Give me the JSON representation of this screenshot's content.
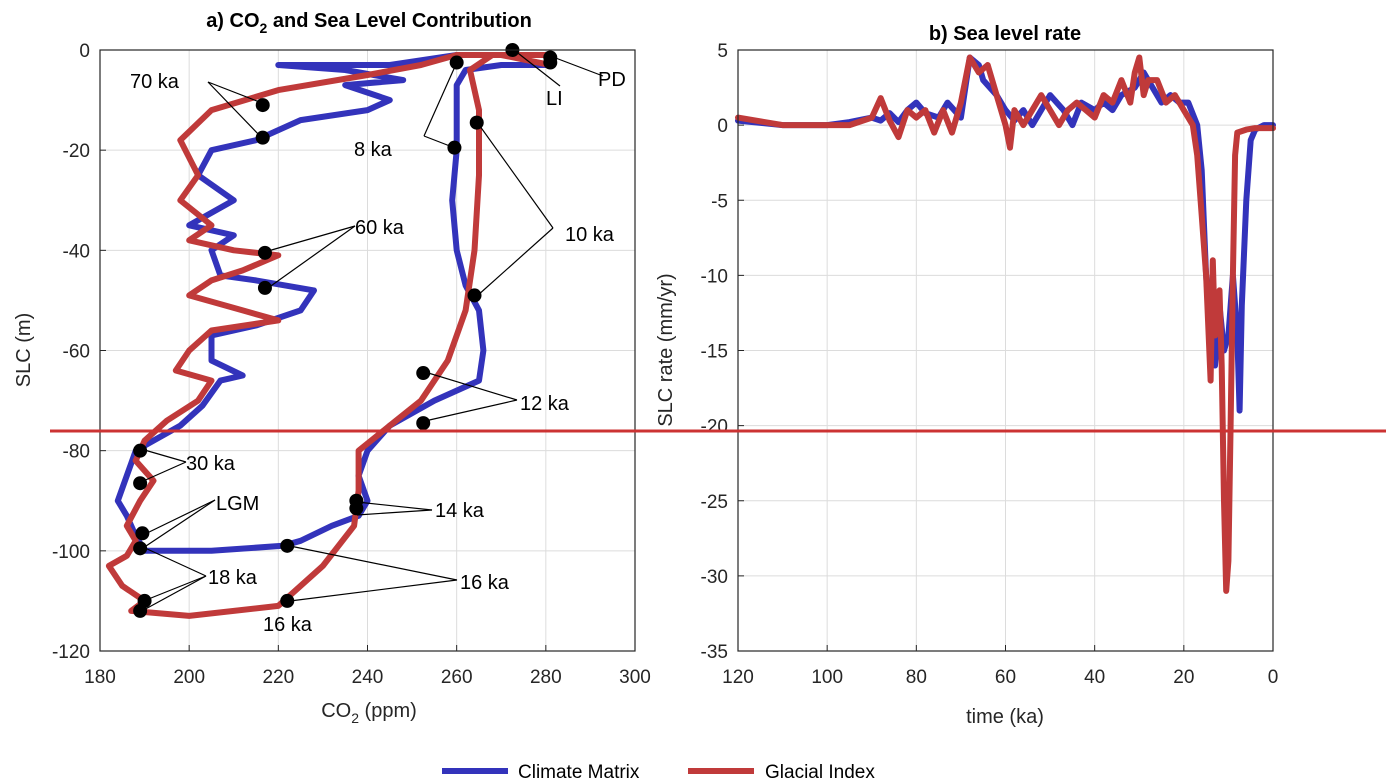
{
  "chart_data": [
    {
      "type": "line",
      "panel": "a",
      "title": "a) CO₂ and Sea Level Contribution",
      "xlabel": "CO₂ (ppm)",
      "ylabel": "SLC (m)",
      "xlim": [
        180,
        300
      ],
      "ylim": [
        -120,
        0
      ],
      "xticks": [
        180,
        200,
        220,
        240,
        260,
        280,
        300
      ],
      "yticks": [
        0,
        -20,
        -40,
        -60,
        -80,
        -100,
        -120
      ],
      "grid": true,
      "series": [
        {
          "name": "Climate Matrix",
          "color": "#3333bb",
          "points": [
            [
              281,
              -3
            ],
            [
              270,
              -3
            ],
            [
              262,
              -4
            ],
            [
              260,
              -7
            ],
            [
              260,
              -20
            ],
            [
              259,
              -30
            ],
            [
              260,
              -40
            ],
            [
              262,
              -47
            ],
            [
              265,
              -52
            ],
            [
              266,
              -60
            ],
            [
              265,
              -66
            ],
            [
              255,
              -70
            ],
            [
              245,
              -75
            ],
            [
              240,
              -80
            ],
            [
              238,
              -85
            ],
            [
              240,
              -90
            ],
            [
              238,
              -93
            ],
            [
              232,
              -95
            ],
            [
              225,
              -98
            ],
            [
              221,
              -99
            ],
            [
              205,
              -100
            ],
            [
              190,
              -100
            ],
            [
              188,
              -97
            ],
            [
              186,
              -93
            ],
            [
              184,
              -90
            ],
            [
              186,
              -85
            ],
            [
              188,
              -80
            ],
            [
              192,
              -78
            ],
            [
              198,
              -75
            ],
            [
              203,
              -71
            ],
            [
              207,
              -66
            ],
            [
              212,
              -65
            ],
            [
              205,
              -62
            ],
            [
              205,
              -57
            ],
            [
              215,
              -55
            ],
            [
              225,
              -52
            ],
            [
              228,
              -48
            ],
            [
              215,
              -46
            ],
            [
              207,
              -45
            ],
            [
              205,
              -40
            ],
            [
              210,
              -37
            ],
            [
              200,
              -35
            ],
            [
              210,
              -30
            ],
            [
              202,
              -25
            ],
            [
              205,
              -20
            ],
            [
              215,
              -18
            ],
            [
              225,
              -14
            ],
            [
              240,
              -12
            ],
            [
              245,
              -10
            ],
            [
              235,
              -7
            ],
            [
              248,
              -6
            ],
            [
              235,
              -4
            ],
            [
              220,
              -3
            ],
            [
              245,
              -3
            ],
            [
              260,
              -1
            ],
            [
              281,
              -1
            ]
          ]
        },
        {
          "name": "Glacial Index",
          "color": "#c03a3a",
          "points": [
            [
              281,
              -3
            ],
            [
              270,
              -1
            ],
            [
              260,
              -1
            ],
            [
              252,
              -3
            ],
            [
              240,
              -5
            ],
            [
              220,
              -8
            ],
            [
              205,
              -12
            ],
            [
              198,
              -18
            ],
            [
              202,
              -25
            ],
            [
              198,
              -30
            ],
            [
              205,
              -35
            ],
            [
              200,
              -38
            ],
            [
              210,
              -40
            ],
            [
              220,
              -41
            ],
            [
              212,
              -44
            ],
            [
              205,
              -46
            ],
            [
              200,
              -49
            ],
            [
              212,
              -52
            ],
            [
              220,
              -54
            ],
            [
              205,
              -56
            ],
            [
              200,
              -60
            ],
            [
              197,
              -64
            ],
            [
              205,
              -66
            ],
            [
              202,
              -70
            ],
            [
              195,
              -74
            ],
            [
              190,
              -78
            ],
            [
              188,
              -82
            ],
            [
              192,
              -86
            ],
            [
              189,
              -90
            ],
            [
              186,
              -95
            ],
            [
              188,
              -98
            ],
            [
              186,
              -101
            ],
            [
              182,
              -103
            ],
            [
              185,
              -107
            ],
            [
              190,
              -110
            ],
            [
              187,
              -112
            ],
            [
              200,
              -113
            ],
            [
              220,
              -111
            ],
            [
              230,
              -103
            ],
            [
              237,
              -95
            ],
            [
              238,
              -88
            ],
            [
              238,
              -80
            ],
            [
              245,
              -75
            ],
            [
              252,
              -70
            ],
            [
              258,
              -62
            ],
            [
              262,
              -52
            ],
            [
              264,
              -40
            ],
            [
              265,
              -25
            ],
            [
              265,
              -12
            ],
            [
              263,
              -4
            ],
            [
              268,
              -1
            ],
            [
              281,
              -1
            ]
          ]
        }
      ],
      "markers": {
        "color": "#000000",
        "points": [
          [
            272.5,
            0
          ],
          [
            281,
            -1.5
          ],
          [
            281,
            -2.5
          ],
          [
            260,
            -2.5
          ],
          [
            216.5,
            -11
          ],
          [
            216.5,
            -17.5
          ],
          [
            259.5,
            -19.5
          ],
          [
            264.5,
            -14.5
          ],
          [
            217,
            -40.5
          ],
          [
            217,
            -47.5
          ],
          [
            264,
            -49
          ],
          [
            252.5,
            -64.5
          ],
          [
            252.5,
            -74.5
          ],
          [
            189,
            -80
          ],
          [
            189,
            -86.5
          ],
          [
            237.5,
            -90
          ],
          [
            237.5,
            -91.5
          ],
          [
            189.5,
            -96.5
          ],
          [
            189,
            -99.5
          ],
          [
            222,
            -99
          ],
          [
            190,
            -110
          ],
          [
            222,
            -110
          ],
          [
            189,
            -112
          ]
        ]
      },
      "annotations": {
        "pd": "PD",
        "li": "LI",
        "ka70": "70 ka",
        "ka8": "8 ka",
        "ka10": "10 ka",
        "ka60": "60 ka",
        "ka12": "12 ka",
        "ka30": "30 ka",
        "ka14": "14 ka",
        "lgm": "LGM",
        "ka18": "18 ka",
        "ka16a": "16 ka",
        "ka16b": "16 ka"
      }
    },
    {
      "type": "line",
      "panel": "b",
      "title": "b) Sea level rate",
      "xlabel": "time (ka)",
      "ylabel": "SLC rate (mm/yr)",
      "xlim": [
        120,
        0
      ],
      "ylim": [
        -35,
        5
      ],
      "xticks": [
        120,
        100,
        80,
        60,
        40,
        20,
        0
      ],
      "yticks": [
        5,
        0,
        -5,
        -10,
        -15,
        -20,
        -25,
        -30,
        -35
      ],
      "grid": true,
      "series": [
        {
          "name": "Climate Matrix",
          "color": "#3333bb",
          "points": [
            [
              120,
              0.3
            ],
            [
              110,
              0
            ],
            [
              100,
              0
            ],
            [
              95,
              0.2
            ],
            [
              90,
              0.5
            ],
            [
              88,
              0.3
            ],
            [
              86,
              0.8
            ],
            [
              84,
              0.2
            ],
            [
              82,
              1
            ],
            [
              80,
              1.5
            ],
            [
              78,
              0.8
            ],
            [
              75,
              0.5
            ],
            [
              73,
              1.5
            ],
            [
              70,
              0.5
            ],
            [
              68,
              4.5
            ],
            [
              66,
              4
            ],
            [
              65,
              3
            ],
            [
              62,
              2
            ],
            [
              60,
              1
            ],
            [
              58,
              0.3
            ],
            [
              56,
              1
            ],
            [
              54,
              0
            ],
            [
              52,
              1
            ],
            [
              50,
              2
            ],
            [
              47,
              1
            ],
            [
              45,
              0
            ],
            [
              43,
              1.5
            ],
            [
              40,
              1
            ],
            [
              38,
              1.5
            ],
            [
              36,
              1
            ],
            [
              34,
              2
            ],
            [
              31,
              2.5
            ],
            [
              29,
              3.5
            ],
            [
              27,
              2.5
            ],
            [
              25,
              1.5
            ],
            [
              23,
              2
            ],
            [
              21,
              1.5
            ],
            [
              19,
              1.5
            ],
            [
              17,
              0
            ],
            [
              16,
              -3
            ],
            [
              15,
              -10
            ],
            [
              14,
              -14
            ],
            [
              13,
              -16
            ],
            [
              12,
              -12
            ],
            [
              11,
              -15
            ],
            [
              10,
              -14
            ],
            [
              9,
              -10
            ],
            [
              8,
              -14
            ],
            [
              7.5,
              -19
            ],
            [
              7,
              -12
            ],
            [
              6,
              -5
            ],
            [
              5,
              -1
            ],
            [
              4,
              -0.3
            ],
            [
              2,
              0
            ],
            [
              0,
              0
            ]
          ]
        },
        {
          "name": "Glacial Index",
          "color": "#c03a3a",
          "points": [
            [
              120,
              0.5
            ],
            [
              110,
              0
            ],
            [
              100,
              0
            ],
            [
              95,
              0
            ],
            [
              90,
              0.5
            ],
            [
              88,
              1.8
            ],
            [
              86,
              0.3
            ],
            [
              84,
              -0.8
            ],
            [
              82,
              1
            ],
            [
              80,
              0.5
            ],
            [
              78,
              1
            ],
            [
              76,
              -0.5
            ],
            [
              74,
              1
            ],
            [
              72,
              -0.5
            ],
            [
              70,
              1.5
            ],
            [
              68,
              4.5
            ],
            [
              66,
              3.5
            ],
            [
              64,
              4
            ],
            [
              62,
              2
            ],
            [
              60,
              0
            ],
            [
              59,
              -1.5
            ],
            [
              58,
              1
            ],
            [
              56,
              0
            ],
            [
              54,
              1
            ],
            [
              52,
              2
            ],
            [
              50,
              1
            ],
            [
              48,
              0
            ],
            [
              46,
              1
            ],
            [
              44,
              1.5
            ],
            [
              42,
              1
            ],
            [
              40,
              0.5
            ],
            [
              38,
              2
            ],
            [
              36,
              1.5
            ],
            [
              34,
              3
            ],
            [
              32,
              1.5
            ],
            [
              31,
              3.5
            ],
            [
              30,
              4.5
            ],
            [
              29,
              2
            ],
            [
              28,
              3
            ],
            [
              26,
              3
            ],
            [
              24,
              1.5
            ],
            [
              22,
              2
            ],
            [
              20,
              1
            ],
            [
              18,
              0
            ],
            [
              17,
              -2
            ],
            [
              16,
              -6
            ],
            [
              15,
              -10
            ],
            [
              14,
              -17
            ],
            [
              13.5,
              -9
            ],
            [
              13,
              -14
            ],
            [
              12,
              -11
            ],
            [
              11.5,
              -16
            ],
            [
              11,
              -25
            ],
            [
              10.5,
              -31
            ],
            [
              10,
              -29
            ],
            [
              9.5,
              -20
            ],
            [
              9,
              -10
            ],
            [
              8.5,
              -2
            ],
            [
              8,
              -0.5
            ],
            [
              6,
              -0.3
            ],
            [
              4,
              -0.2
            ],
            [
              2,
              -0.2
            ],
            [
              0,
              -0.2
            ]
          ]
        }
      ]
    }
  ],
  "legend": {
    "placement": "bottom",
    "items": [
      {
        "label": "Climate Matrix",
        "color": "#3333bb"
      },
      {
        "label": "Glacial Index",
        "color": "#c03a3a"
      }
    ]
  },
  "overlay_line_color": "#cc3333"
}
